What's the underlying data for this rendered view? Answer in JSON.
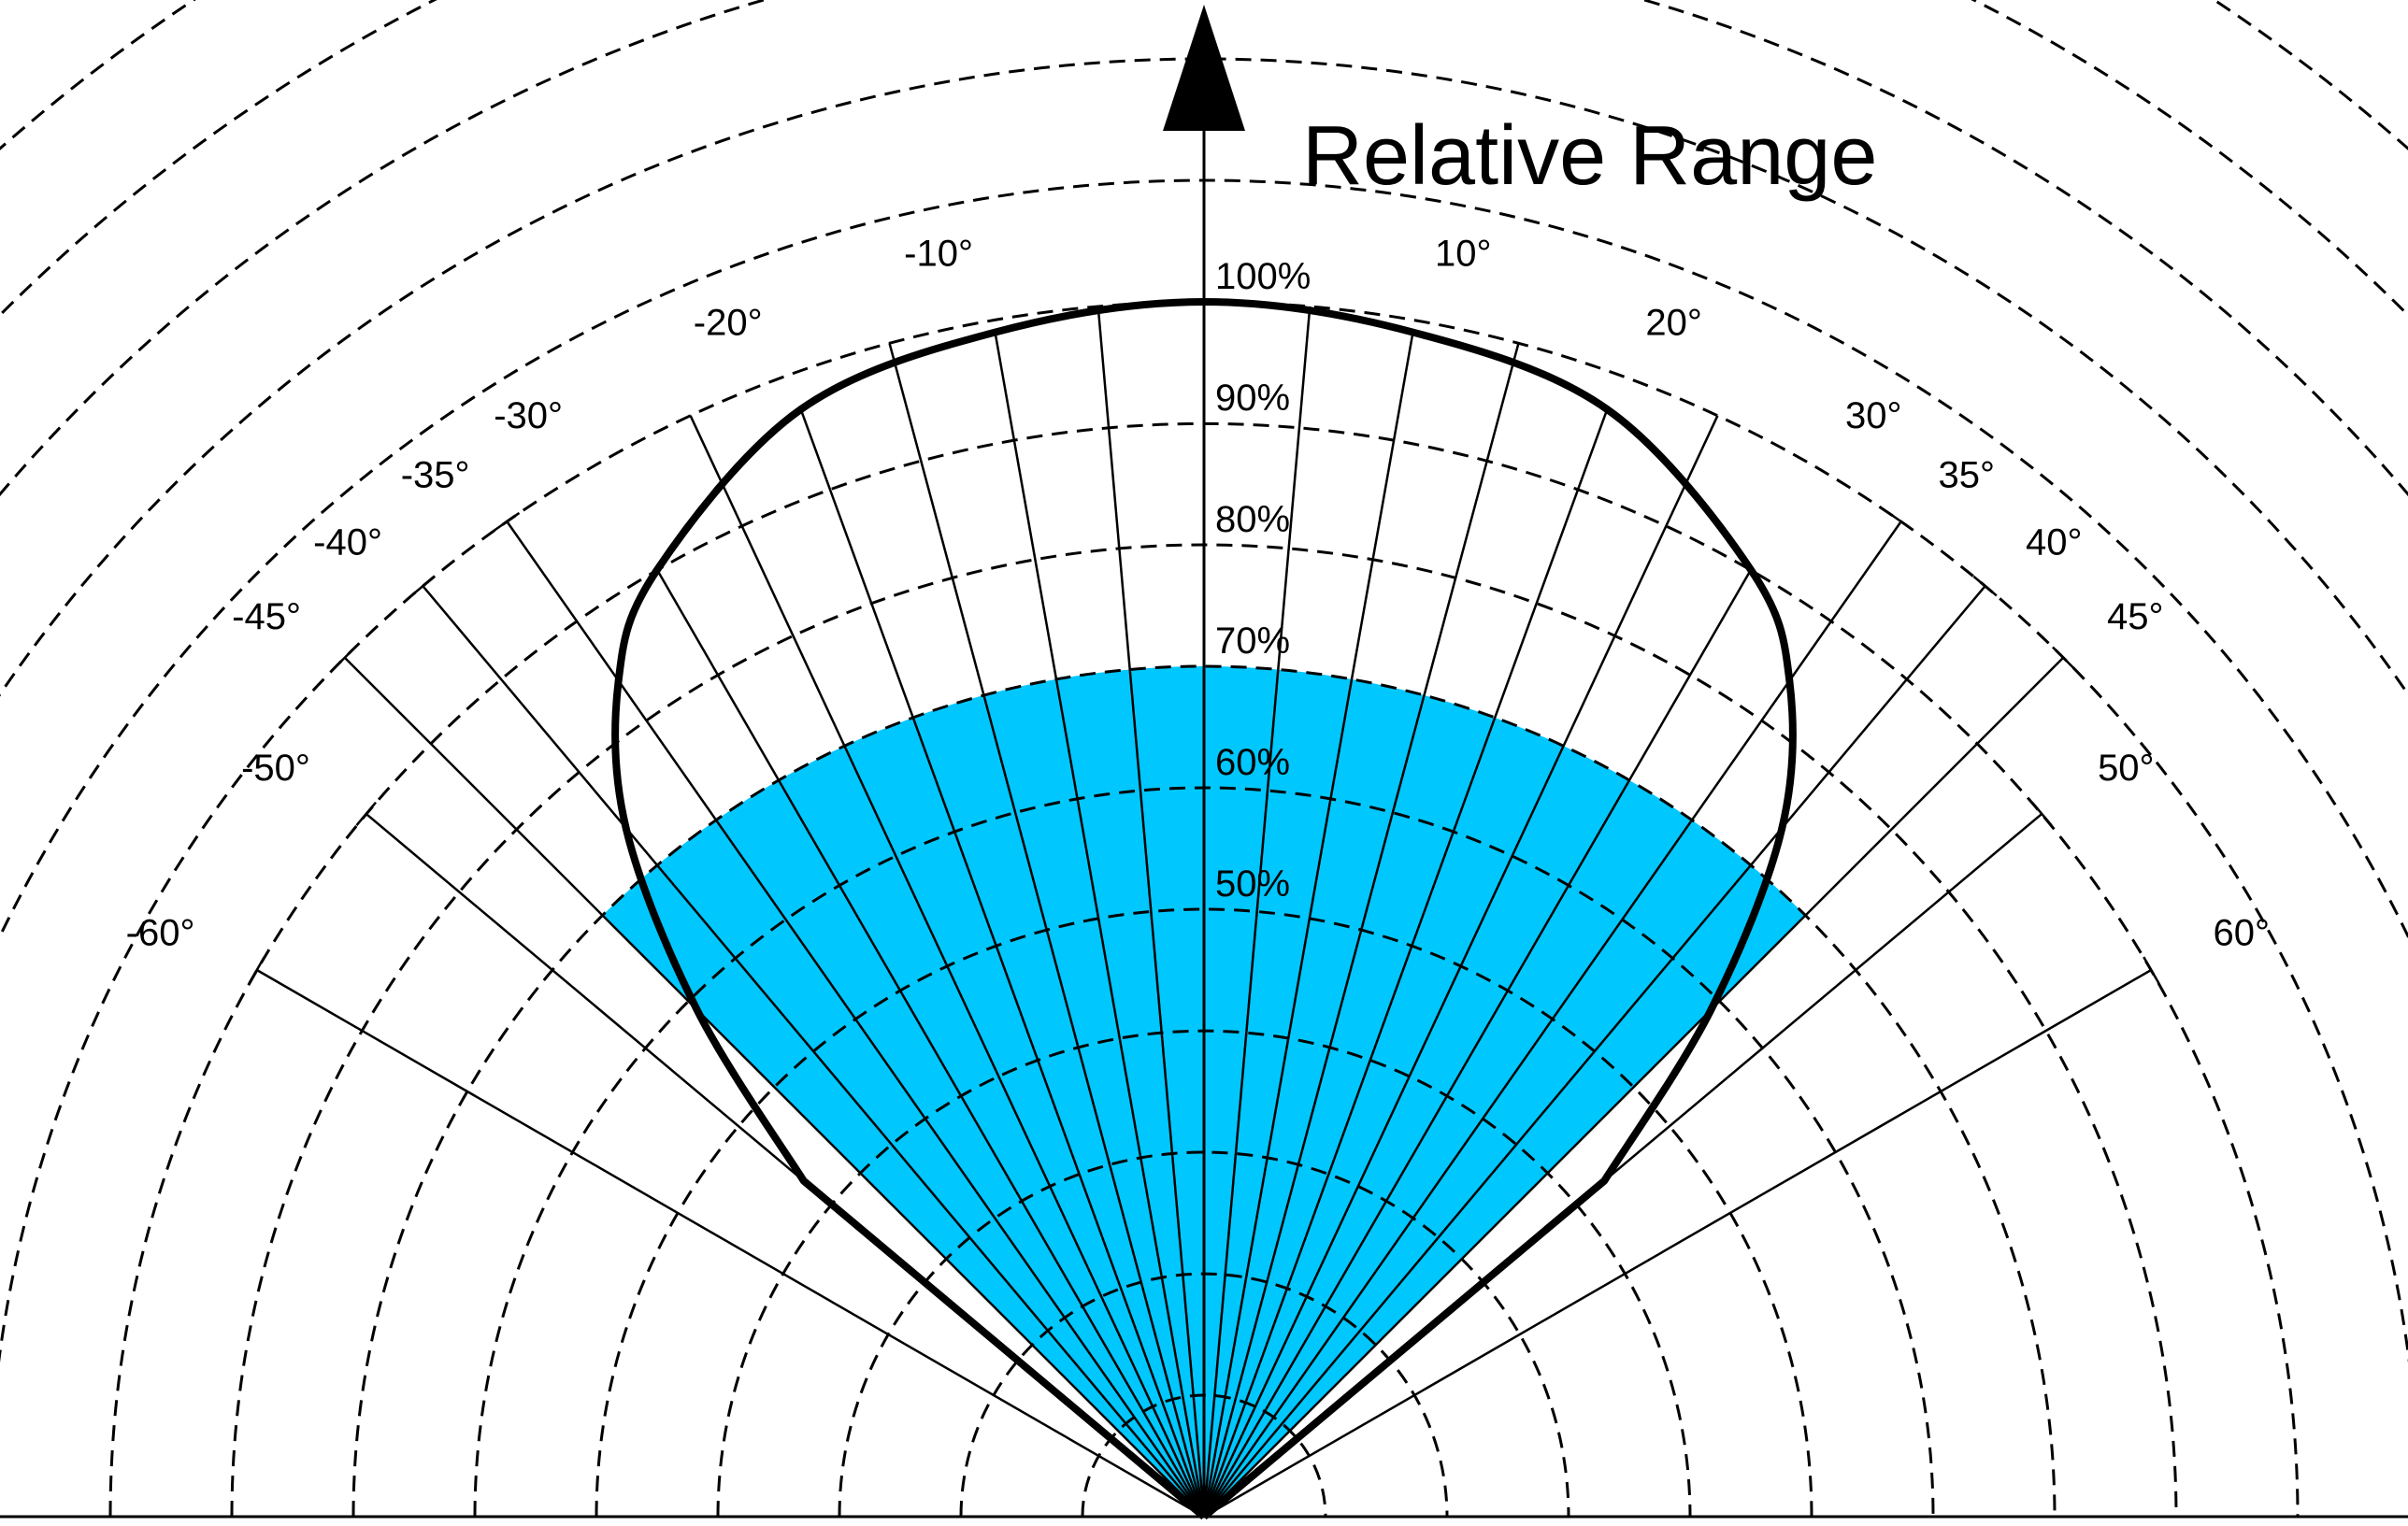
{
  "chart_data": {
    "type": "polar-range",
    "title": "Relative Range",
    "radial_ticks": [
      "50%",
      "60%",
      "70%",
      "80%",
      "90%",
      "100%"
    ],
    "angle_ticks": [
      "-60°",
      "-50°",
      "-45°",
      "-40°",
      "-35°",
      "-30°",
      "-20°",
      "-10°",
      "10°",
      "20°",
      "30°",
      "35°",
      "40°",
      "45°",
      "50°",
      "60°"
    ],
    "rings_pct": [
      10,
      20,
      30,
      40,
      50,
      60,
      70,
      80,
      90,
      100,
      110,
      120,
      130,
      140,
      150
    ],
    "spokes_deg": [
      -60,
      -50,
      -45,
      -40,
      -35,
      -30,
      -25,
      -20,
      -15,
      -10,
      -5,
      0,
      5,
      10,
      15,
      20,
      25,
      30,
      35,
      40,
      45,
      50,
      60
    ],
    "filled_region": {
      "range_pct": 70,
      "angle_range_deg": [
        -45,
        45
      ],
      "color": "#00c8ff"
    },
    "range_boundary": {
      "points": [
        {
          "angle": 0,
          "range": 100
        },
        {
          "angle": -10,
          "range": 99
        },
        {
          "angle": -20,
          "range": 97
        },
        {
          "angle": -30,
          "range": 90
        },
        {
          "angle": -35,
          "range": 84
        },
        {
          "angle": -40,
          "range": 74
        },
        {
          "angle": -45,
          "range": 59
        },
        {
          "angle": -50,
          "range": 43
        },
        {
          "angle": 10,
          "range": 99
        },
        {
          "angle": 20,
          "range": 97
        },
        {
          "angle": 30,
          "range": 90
        },
        {
          "angle": 35,
          "range": 84
        },
        {
          "angle": 40,
          "range": 74
        },
        {
          "angle": 45,
          "range": 59
        },
        {
          "angle": 50,
          "range": 43
        }
      ]
    }
  }
}
